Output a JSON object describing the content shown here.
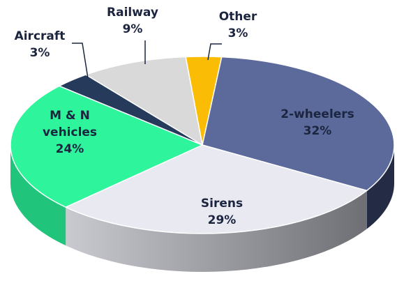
{
  "chart_data": {
    "type": "pie3d",
    "categories": [
      "Other",
      "2-wheelers",
      "Sirens",
      "M & N vehicles",
      "Aircraft",
      "Railway"
    ],
    "values": [
      3,
      32,
      29,
      24,
      3,
      9
    ],
    "value_labels": [
      "3%",
      "32%",
      "29%",
      "24%",
      "3%",
      "9%"
    ],
    "colors": [
      "#fbbc05",
      "#5b6a9a",
      "#e9eaf1",
      "#2ef59c",
      "#263a5c",
      "#d9d9d9"
    ]
  }
}
